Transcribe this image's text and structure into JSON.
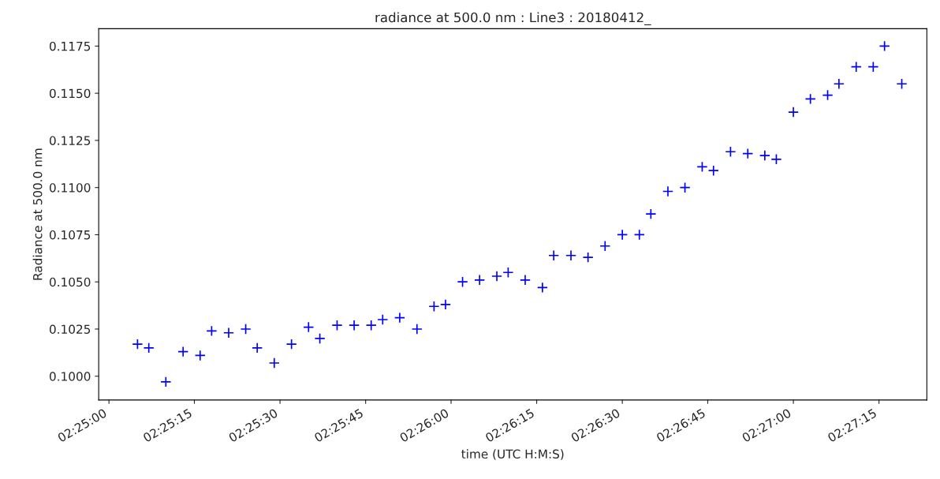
{
  "chart_data": {
    "type": "scatter",
    "title": "radiance at 500.0 nm : Line3 : 20180412_",
    "xlabel": "time (UTC H:M:S)",
    "ylabel": "Radiance at 500.0 nm",
    "marker": "cross",
    "grid": false,
    "x": [
      2.41806,
      2.41861,
      2.41944,
      2.42028,
      2.42111,
      2.42167,
      2.4225,
      2.42333,
      2.42389,
      2.42472,
      2.42556,
      2.42639,
      2.42694,
      2.42778,
      2.42861,
      2.42944,
      2.43,
      2.43083,
      2.43167,
      2.4325,
      2.43306,
      2.43389,
      2.43472,
      2.43556,
      2.43611,
      2.43694,
      2.43778,
      2.43833,
      2.43917,
      2.44,
      2.44083,
      2.44167,
      2.4425,
      2.44306,
      2.44389,
      2.44472,
      2.44556,
      2.44611,
      2.44694,
      2.44778,
      2.44861,
      2.44917,
      2.45,
      2.45083,
      2.45167,
      2.45222,
      2.45306,
      2.45389,
      2.45444,
      2.45528
    ],
    "series": [
      {
        "color": "#0000ff",
        "values": [
          0.1017,
          0.1015,
          0.0997,
          0.1013,
          0.1011,
          0.1024,
          0.1023,
          0.1025,
          0.1015,
          0.1007,
          0.1017,
          0.1026,
          0.102,
          0.1027,
          0.1027,
          0.1027,
          0.103,
          0.1031,
          0.1025,
          0.1037,
          0.1038,
          0.105,
          0.1051,
          0.1053,
          0.1055,
          0.1051,
          0.1047,
          0.1064,
          0.1064,
          0.1063,
          0.1069,
          0.1075,
          0.1075,
          0.1086,
          0.1098,
          0.11,
          0.1111,
          0.1109,
          0.1119,
          0.1118,
          0.1117,
          0.1115,
          0.114,
          0.1147,
          0.1149,
          0.1155,
          0.1164,
          0.1164,
          0.1175,
          0.1155
        ]
      }
    ],
    "xlim": [
      2.41617,
      2.4565
    ],
    "xticks": [
      {
        "value": 2.41667,
        "label": "02:25:00"
      },
      {
        "value": 2.42083,
        "label": "02:25:15"
      },
      {
        "value": 2.425,
        "label": "02:25:30"
      },
      {
        "value": 2.42917,
        "label": "02:25:45"
      },
      {
        "value": 2.43333,
        "label": "02:26:00"
      },
      {
        "value": 2.4375,
        "label": "02:26:15"
      },
      {
        "value": 2.44167,
        "label": "02:26:30"
      },
      {
        "value": 2.44583,
        "label": "02:26:45"
      },
      {
        "value": 2.45,
        "label": "02:27:00"
      },
      {
        "value": 2.45417,
        "label": "02:27:15"
      }
    ],
    "ylim": [
      0.09874,
      0.11842
    ],
    "yticks": [
      {
        "value": 0.1,
        "label": "0.1000"
      },
      {
        "value": 0.1025,
        "label": "0.1025"
      },
      {
        "value": 0.105,
        "label": "0.1050"
      },
      {
        "value": 0.1075,
        "label": "0.1075"
      },
      {
        "value": 0.11,
        "label": "0.1100"
      },
      {
        "value": 0.1125,
        "label": "0.1125"
      },
      {
        "value": 0.115,
        "label": "0.1150"
      },
      {
        "value": 0.1175,
        "label": "0.1175"
      }
    ]
  }
}
